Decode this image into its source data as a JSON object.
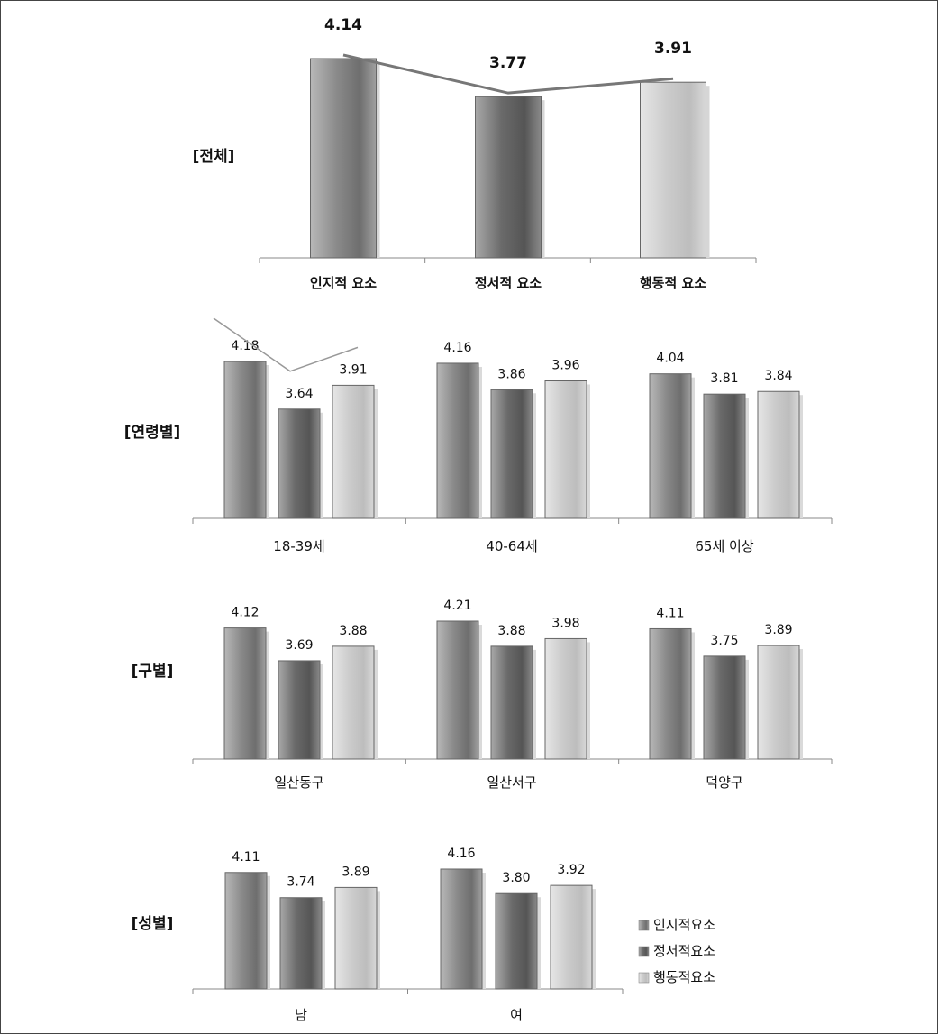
{
  "chart_data": [
    {
      "type": "bar",
      "title": "[전체]",
      "categories": [
        "인지적 요소",
        "정서적 요소",
        "행동적 요소"
      ],
      "series": [
        {
          "values": [
            4.14,
            3.77,
            3.91
          ]
        }
      ],
      "ylim": [
        2.2,
        4.3
      ],
      "overlay_line": true,
      "colors": [
        "#7c7c7c",
        "#5f5f5f",
        "#cfcfcf"
      ]
    },
    {
      "type": "bar",
      "title": "[연령별]",
      "categories": [
        "18-39세",
        "40-64세",
        "65세 이상"
      ],
      "series": [
        {
          "name": "인지적요소",
          "values": [
            4.18,
            4.16,
            4.04
          ]
        },
        {
          "name": "정서적요소",
          "values": [
            3.64,
            3.86,
            3.81
          ]
        },
        {
          "name": "행동적요소",
          "values": [
            3.91,
            3.96,
            3.84
          ]
        }
      ],
      "ylim": [
        2.4,
        4.3
      ],
      "overlay_line": true
    },
    {
      "type": "bar",
      "title": "[구별]",
      "categories": [
        "일산동구",
        "일산서구",
        "덕양구"
      ],
      "series": [
        {
          "name": "인지적요소",
          "values": [
            4.12,
            4.21,
            4.11
          ]
        },
        {
          "name": "정서적요소",
          "values": [
            3.69,
            3.88,
            3.75
          ]
        },
        {
          "name": "행동적요소",
          "values": [
            3.88,
            3.98,
            3.89
          ]
        }
      ],
      "ylim": [
        2.4,
        4.3
      ]
    },
    {
      "type": "bar",
      "title": "[성별]",
      "categories": [
        "남",
        "여"
      ],
      "series": [
        {
          "name": "인지적요소",
          "values": [
            4.11,
            4.16
          ]
        },
        {
          "name": "정서적요소",
          "values": [
            3.74,
            3.8
          ]
        },
        {
          "name": "행동적요소",
          "values": [
            3.89,
            3.92
          ]
        }
      ],
      "ylim": [
        2.4,
        4.3
      ],
      "legend": "right"
    }
  ],
  "legend": {
    "items": [
      "인지적요소",
      "정서적요소",
      "행동적요소"
    ],
    "colors": [
      "#808080",
      "#606060",
      "#c8c8c8"
    ]
  }
}
